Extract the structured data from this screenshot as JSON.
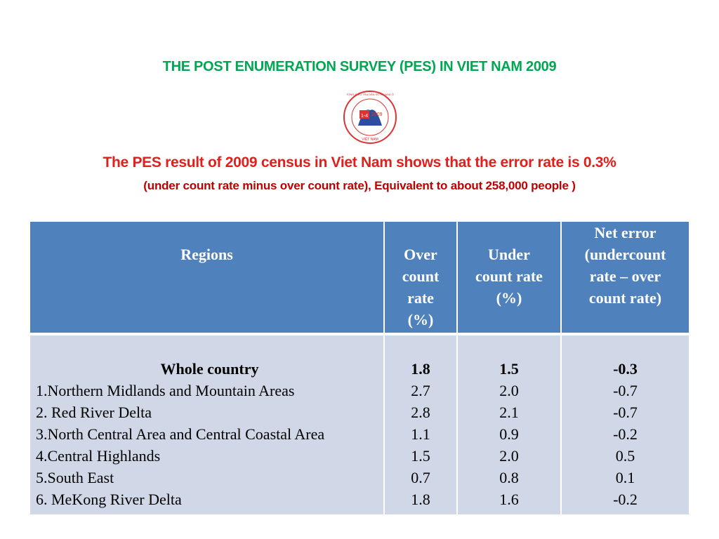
{
  "header": {
    "title": "THE POST ENUMERATION SURVEY (PES) IN VIET NAM 2009",
    "logo": {
      "ring_text": "TỔNG ĐIỀU TRA DÂN SỐ VÀ NHÀ Ở",
      "date": "1-4",
      "year": "2009",
      "country": "VIỆT NAM"
    },
    "summary": "The PES result of 2009 census in Viet Nam shows that the error rate is 0.3%",
    "summary_note": "(under count rate minus over count rate), Equivalent to about 258,000 people )"
  },
  "table": {
    "columns": [
      [
        "Regions"
      ],
      [
        "Over",
        "count",
        "rate",
        "(%)"
      ],
      [
        "Under",
        "count rate",
        "(%)"
      ],
      [
        "Net error",
        "(undercount",
        "rate – over",
        "count rate)"
      ]
    ],
    "rows": [
      [
        "Whole country",
        "1.8",
        "1.5",
        "-0.3"
      ],
      [
        "1.Northern Midlands and Mountain Areas",
        "2.7",
        "2.0",
        "-0.7"
      ],
      [
        "2. Red River Delta",
        "2.8",
        "2.1",
        "-0.7"
      ],
      [
        "3.North Central Area and Central Coastal Area",
        "1.1",
        "0.9",
        "-0.2"
      ],
      [
        "4.Central Highlands",
        "1.5",
        "2.0",
        "0.5"
      ],
      [
        "5.South East",
        "0.7",
        "0.8",
        "0.1"
      ],
      [
        "6. MeKong River Delta",
        "1.8",
        "1.6",
        "-0.2"
      ]
    ]
  }
}
